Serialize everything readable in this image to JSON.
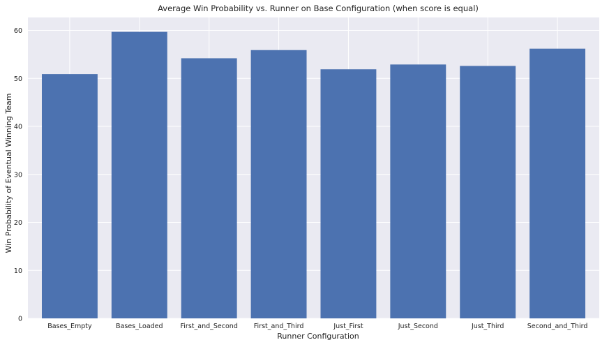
{
  "chart_data": {
    "type": "bar",
    "title": "Average Win Probability vs. Runner on Base Configuration (when score is equal)",
    "xlabel": "Runner Configuration",
    "ylabel": "Win Probability of Eventual Winning Team",
    "categories": [
      "Bases_Empty",
      "Bases_Loaded",
      "First_and_Second",
      "First_and_Third",
      "Just_First",
      "Just_Second",
      "Just_Third",
      "Second_and_Third"
    ],
    "values": [
      50.9,
      59.7,
      54.2,
      55.9,
      51.9,
      52.9,
      52.6,
      56.2
    ],
    "ylim": [
      0,
      62.7
    ],
    "yticks": [
      0,
      10,
      20,
      30,
      40,
      50,
      60
    ],
    "grid": true,
    "bar_color": "#4c72b0",
    "background_color": "#eaeaf2",
    "grid_color": "#ffffff"
  }
}
